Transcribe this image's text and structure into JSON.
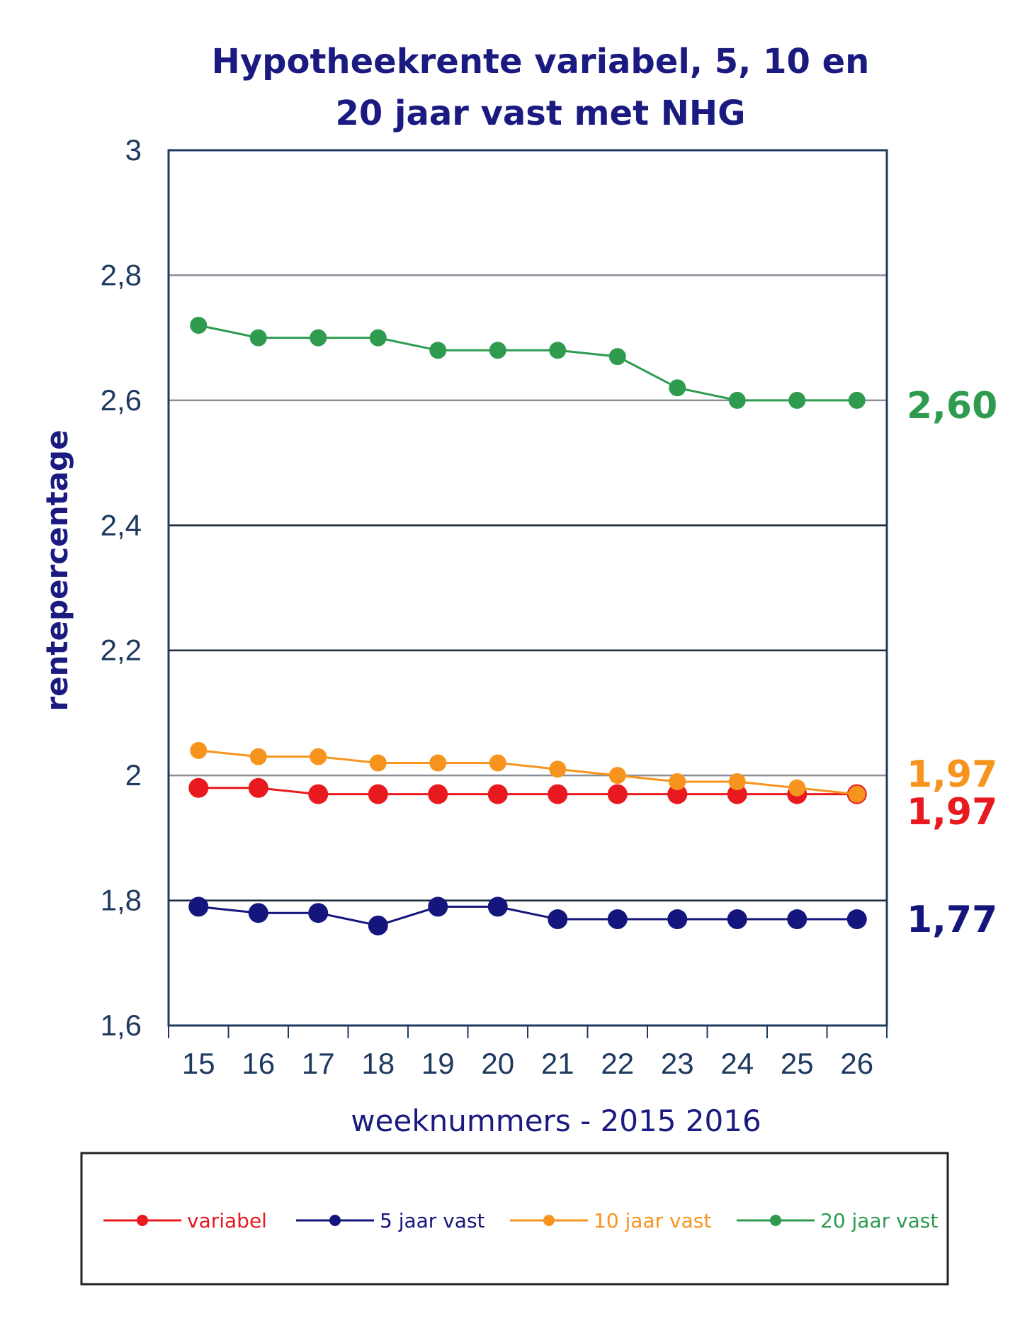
{
  "chart_data": {
    "type": "line",
    "title_line1": "Hypotheekrente variabel, 5, 10 en",
    "title_line2": "20 jaar vast met NHG",
    "xlabel": "weeknummers - 2015 2016",
    "ylabel": "rentepercentage",
    "ylim": [
      1.6,
      3.0
    ],
    "yticks": [
      "1,6",
      "1,8",
      "2",
      "2,2",
      "2,4",
      "2,6",
      "2,8",
      "3"
    ],
    "ytick_values": [
      1.6,
      1.8,
      2.0,
      2.2,
      2.4,
      2.6,
      2.8,
      3.0
    ],
    "categories": [
      "15",
      "16",
      "17",
      "18",
      "19",
      "20",
      "21",
      "22",
      "23",
      "24",
      "25",
      "26"
    ],
    "grid": true,
    "legend_position": "bottom",
    "series": [
      {
        "name": "variabel",
        "color": "#e8191f",
        "values": [
          1.98,
          1.98,
          1.97,
          1.97,
          1.97,
          1.97,
          1.97,
          1.97,
          1.97,
          1.97,
          1.97,
          1.97
        ],
        "end_label": "1,97"
      },
      {
        "name": "5 jaar vast",
        "color": "#15157e",
        "values": [
          1.79,
          1.78,
          1.78,
          1.76,
          1.79,
          1.79,
          1.77,
          1.77,
          1.77,
          1.77,
          1.77,
          1.77
        ],
        "end_label": "1,77"
      },
      {
        "name": "10 jaar vast",
        "color": "#f7941d",
        "values": [
          2.04,
          2.03,
          2.03,
          2.02,
          2.02,
          2.02,
          2.01,
          2.0,
          1.99,
          1.99,
          1.98,
          1.97
        ],
        "end_label": "1,97"
      },
      {
        "name": "20 jaar vast",
        "color": "#2e9b4e",
        "values": [
          2.72,
          2.7,
          2.7,
          2.7,
          2.68,
          2.68,
          2.68,
          2.67,
          2.62,
          2.6,
          2.6,
          2.6
        ],
        "end_label": "2,60"
      }
    ]
  }
}
